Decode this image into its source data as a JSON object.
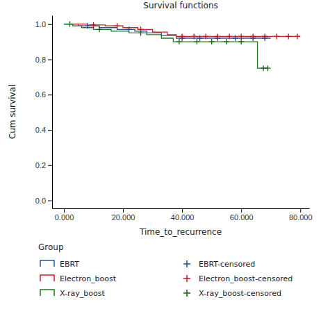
{
  "chart_data": {
    "type": "survival",
    "title": "Survival functions",
    "x_label": "Time_to_recurrence",
    "y_label": "Cum survival",
    "legend_title": "Group",
    "legend": "bottom",
    "xlim": [
      -4,
      83
    ],
    "ylim": [
      -0.045,
      1.05
    ],
    "xticks": [
      {
        "value": 0,
        "label": "0.000"
      },
      {
        "value": 20,
        "label": "20.000"
      },
      {
        "value": 40,
        "label": "40.000"
      },
      {
        "value": 60,
        "label": "60.000"
      },
      {
        "value": 80,
        "label": "80.000"
      }
    ],
    "yticks": [
      {
        "value": 0,
        "label": "0.0"
      },
      {
        "value": 0.2,
        "label": "0.2"
      },
      {
        "value": 0.4,
        "label": "0.4"
      },
      {
        "value": 0.6,
        "label": "0.6"
      },
      {
        "value": 0.8,
        "label": "0.8"
      },
      {
        "value": 1,
        "label": "1.0"
      }
    ],
    "series": [
      {
        "name": "EBRT",
        "type": "line",
        "line_style": "step",
        "color": "#2456a6",
        "x": [
          0,
          5,
          12,
          18,
          24,
          28,
          33,
          38,
          70
        ],
        "values": [
          1.0,
          0.99,
          0.98,
          0.97,
          0.96,
          0.95,
          0.935,
          0.92,
          0.92
        ]
      },
      {
        "name": "Electron_boost",
        "type": "line",
        "line_style": "step",
        "color": "#d0202a",
        "x": [
          0,
          8,
          14,
          20,
          25,
          30,
          35,
          38,
          80
        ],
        "values": [
          1.0,
          0.995,
          0.99,
          0.98,
          0.97,
          0.955,
          0.94,
          0.93,
          0.93
        ]
      },
      {
        "name": "X-ray_boost",
        "type": "line",
        "line_style": "step",
        "color": "#1e7a1e",
        "x": [
          0,
          3,
          6,
          10,
          16,
          22,
          28,
          33,
          37,
          65.5,
          69
        ],
        "values": [
          1.0,
          0.99,
          0.98,
          0.97,
          0.96,
          0.95,
          0.94,
          0.92,
          0.9,
          0.75,
          0.75
        ]
      },
      {
        "name": "EBRT-censored",
        "type": "scatter",
        "marker": "plus",
        "color": "#1f4e9e",
        "x": [
          8,
          22,
          40,
          46,
          52,
          58,
          64,
          68
        ],
        "values": [
          0.99,
          0.97,
          0.92,
          0.92,
          0.92,
          0.92,
          0.92,
          0.92
        ]
      },
      {
        "name": "Electron_boost-censored",
        "type": "scatter",
        "marker": "plus",
        "color": "#cc1020",
        "x": [
          10,
          18,
          26,
          40,
          44,
          48,
          52,
          56,
          60,
          64,
          68,
          72,
          76,
          79
        ],
        "values": [
          0.995,
          0.99,
          0.97,
          0.93,
          0.93,
          0.93,
          0.93,
          0.93,
          0.93,
          0.93,
          0.93,
          0.93,
          0.93,
          0.93
        ]
      },
      {
        "name": "X-ray_boost-censored",
        "type": "scatter",
        "marker": "plus",
        "color": "#0d640d",
        "x": [
          2,
          12,
          26,
          39,
          45,
          50,
          55,
          60,
          67.5,
          69
        ],
        "values": [
          1.0,
          0.97,
          0.95,
          0.9,
          0.9,
          0.9,
          0.9,
          0.9,
          0.75,
          0.75
        ]
      }
    ]
  }
}
